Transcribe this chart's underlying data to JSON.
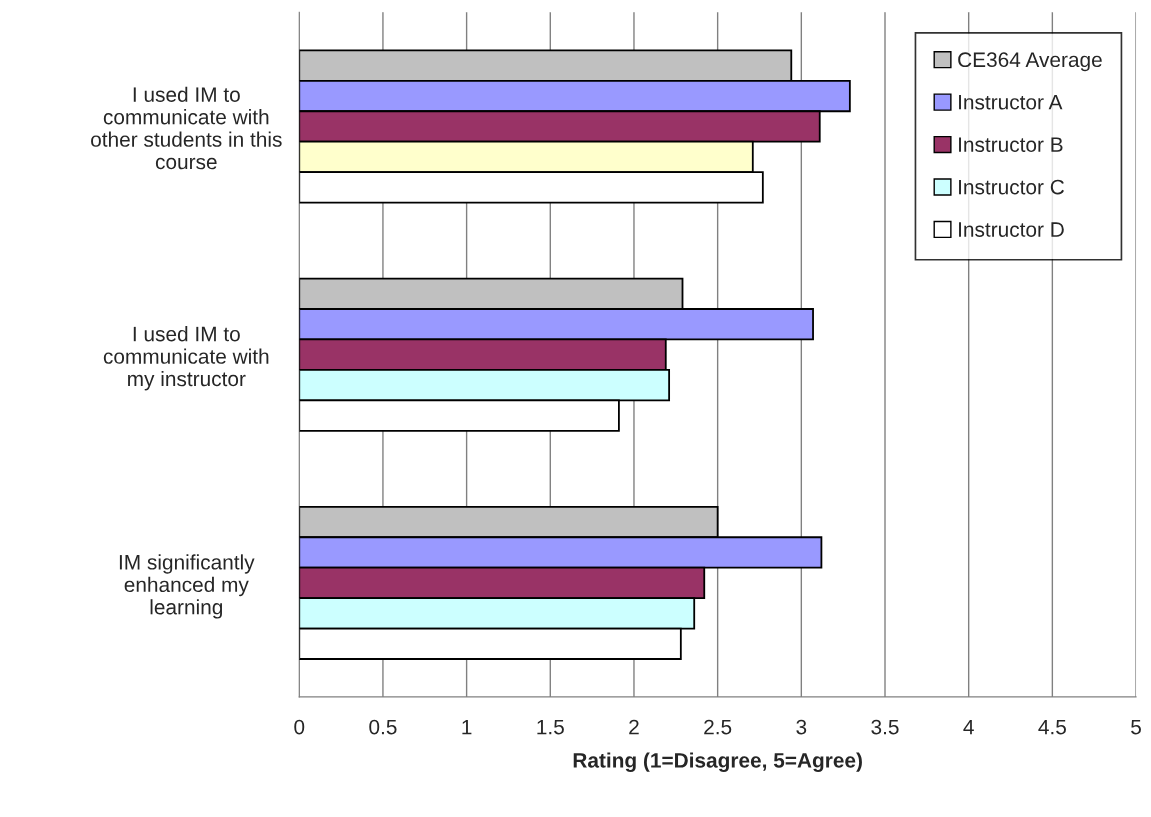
{
  "chart_data": {
    "type": "bar",
    "orientation": "horizontal",
    "xlabel": "Rating (1=Disagree, 5=Agree)",
    "categories": [
      "I used IM to communicate with other students in this course",
      "I used IM to communicate with my instructor",
      "IM significantly enhanced my learning"
    ],
    "series": [
      {
        "name": "CE364 Average",
        "color": "#c0c0c0",
        "values": [
          2.94,
          2.29,
          2.5
        ]
      },
      {
        "name": "Instructor A",
        "color": "#9999ff",
        "values": [
          3.29,
          3.07,
          3.12
        ]
      },
      {
        "name": "Instructor B",
        "color": "#993366",
        "values": [
          3.11,
          2.19,
          2.42
        ]
      },
      {
        "name": "Instructor C",
        "color": "#ccffff",
        "colors": [
          "#ffffcc",
          "#ccffff",
          "#ccffff"
        ],
        "values": [
          2.71,
          2.21,
          2.36
        ]
      },
      {
        "name": "Instructor D",
        "color": "#ffffff",
        "values": [
          2.77,
          1.91,
          2.28
        ]
      }
    ],
    "xlim": [
      0,
      5
    ],
    "xticks": [
      0,
      0.5,
      1,
      1.5,
      2,
      2.5,
      3,
      3.5,
      4,
      4.5,
      5
    ],
    "grid": "x",
    "legend": "top right"
  }
}
